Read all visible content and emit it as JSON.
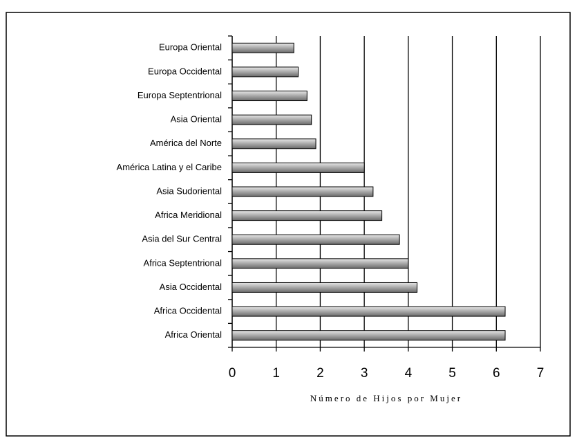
{
  "chart_data": {
    "type": "barh",
    "categories": [
      "Europa Oriental",
      "Europa Occidental",
      "Europa Septentrional",
      "Asia Oriental",
      "América del Norte",
      "América Latina y el Caribe",
      "Asia Sudoriental",
      "Africa Meridional",
      "Asia del Sur Central",
      "Africa Septentrional",
      "Asia Occidental",
      "Africa Occidental",
      "Africa Oriental"
    ],
    "values": [
      1.4,
      1.5,
      1.7,
      1.8,
      1.9,
      3.0,
      3.2,
      3.4,
      3.8,
      4.0,
      4.2,
      6.2,
      6.2
    ],
    "color": "#a0a0a0",
    "xlabel": "Número de Hijos por Mujer",
    "xlim": [
      0,
      7
    ],
    "xticks": [
      0,
      1,
      2,
      3,
      4,
      5,
      6,
      7
    ],
    "grid": true
  }
}
